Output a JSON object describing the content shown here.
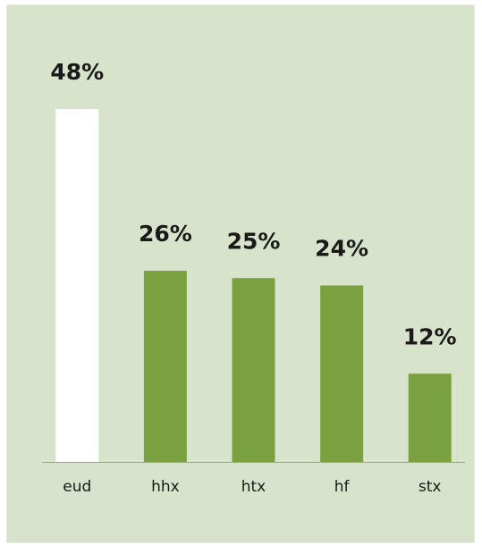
{
  "chart_data": {
    "type": "bar",
    "categories": [
      "eud",
      "hhx",
      "htx",
      "hf",
      "stx"
    ],
    "values": [
      48,
      26,
      25,
      24,
      12
    ],
    "value_labels": [
      "48%",
      "26%",
      "25%",
      "24%",
      "12%"
    ],
    "colors": [
      "#ffffff",
      "#7aa13f",
      "#7aa13f",
      "#7aa13f",
      "#7aa13f"
    ]
  }
}
